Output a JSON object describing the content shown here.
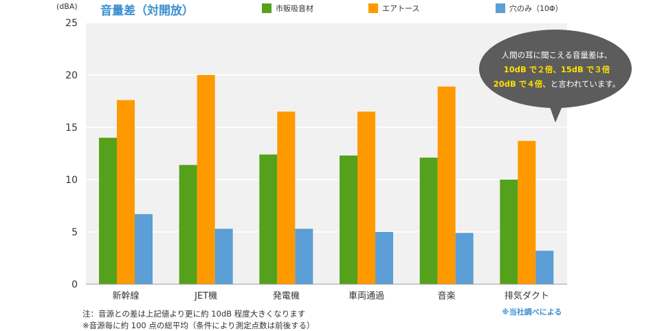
{
  "chart_data": {
    "type": "bar",
    "title": "音量差（対開放）",
    "ylabel": "(dBA)",
    "ylim": [
      0,
      25
    ],
    "yticks": [
      0,
      5,
      10,
      15,
      20,
      25
    ],
    "grid": true,
    "legend_position": "top",
    "categories": [
      "新幹線",
      "JET機",
      "発電機",
      "車両通過",
      "音楽",
      "排気ダクト"
    ],
    "series": [
      {
        "name": "市販吸音材",
        "color": "#55a11b",
        "values": [
          14.0,
          11.4,
          12.4,
          12.3,
          12.1,
          10.0
        ]
      },
      {
        "name": "エアトース",
        "color": "#ff9900",
        "values": [
          17.6,
          20.0,
          16.5,
          16.5,
          18.9,
          13.7
        ]
      },
      {
        "name": "穴のみ（10Φ）",
        "color": "#5b9fd6",
        "values": [
          6.7,
          5.3,
          5.3,
          5.0,
          4.9,
          3.2
        ]
      }
    ]
  },
  "callout": {
    "line1": "人間の耳に聞こえる音量差は、",
    "line2": "10dB で２倍、15dB で３倍",
    "line3_highlight": "20dB で４倍、",
    "line3_rest": "と言われています。"
  },
  "notes": {
    "line1": "注：音源との差は上記値より更に約 10dB 程度大きくなります",
    "line2": "※音源毎に約 100 点の総平均（条件により測定点数は前後する）",
    "source": "※当社調べによる"
  }
}
